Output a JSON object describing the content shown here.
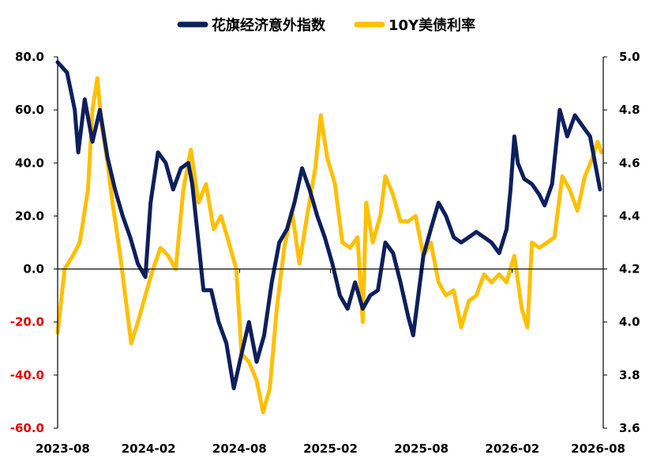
{
  "chart_data": {
    "type": "line",
    "title": "",
    "legend": {
      "position": "top-center"
    },
    "grid": false,
    "x_axis": {
      "ticks": [
        "2023-08",
        "2024-02",
        "2024-08",
        "2025-02",
        "2025-08",
        "2026-02",
        "2026-08"
      ],
      "range": [
        "2023-08",
        "2026-08"
      ]
    },
    "y_left": {
      "range": [
        -60,
        80
      ],
      "ticks": [
        {
          "value": 80,
          "label": "80.0"
        },
        {
          "value": 60,
          "label": "60.0"
        },
        {
          "value": 40,
          "label": "40.0"
        },
        {
          "value": 20,
          "label": "20.0"
        },
        {
          "value": 0,
          "label": "0.0"
        },
        {
          "value": -20,
          "label": "-20.0"
        },
        {
          "value": -40,
          "label": "-40.0"
        },
        {
          "value": -60,
          "label": "-60.0"
        }
      ],
      "negative_label_color": "#e60000"
    },
    "y_right": {
      "range": [
        3.6,
        5.0
      ],
      "ticks": [
        {
          "value": 5.0,
          "label": "5.0"
        },
        {
          "value": 4.8,
          "label": "4.8"
        },
        {
          "value": 4.6,
          "label": "4.6"
        },
        {
          "value": 4.4,
          "label": "4.4"
        },
        {
          "value": 4.2,
          "label": "4.2"
        },
        {
          "value": 4.0,
          "label": "4.0"
        },
        {
          "value": 3.8,
          "label": "3.8"
        },
        {
          "value": 3.6,
          "label": "3.6"
        }
      ]
    },
    "series": [
      {
        "name": "花旗经济意外指数",
        "axis": "left",
        "color": "#0d1f5c",
        "points": [
          [
            "2023-08-01",
            78
          ],
          [
            "2023-08-20",
            74
          ],
          [
            "2023-09-05",
            60
          ],
          [
            "2023-09-12",
            44
          ],
          [
            "2023-09-25",
            64
          ],
          [
            "2023-10-10",
            48
          ],
          [
            "2023-10-25",
            60
          ],
          [
            "2023-11-10",
            42
          ],
          [
            "2023-11-25",
            30
          ],
          [
            "2023-12-10",
            20
          ],
          [
            "2023-12-25",
            12
          ],
          [
            "2024-01-10",
            2
          ],
          [
            "2024-01-25",
            -3
          ],
          [
            "2024-02-05",
            25
          ],
          [
            "2024-02-20",
            44
          ],
          [
            "2024-03-05",
            40
          ],
          [
            "2024-03-20",
            30
          ],
          [
            "2024-04-05",
            38
          ],
          [
            "2024-04-20",
            40
          ],
          [
            "2024-04-28",
            32
          ],
          [
            "2024-05-10",
            10
          ],
          [
            "2024-05-20",
            -8
          ],
          [
            "2024-06-05",
            -8
          ],
          [
            "2024-06-20",
            -20
          ],
          [
            "2024-07-05",
            -28
          ],
          [
            "2024-07-20",
            -45
          ],
          [
            "2024-08-05",
            -32
          ],
          [
            "2024-08-20",
            -20
          ],
          [
            "2024-09-05",
            -35
          ],
          [
            "2024-09-20",
            -25
          ],
          [
            "2024-10-05",
            -5
          ],
          [
            "2024-10-20",
            10
          ],
          [
            "2024-11-05",
            15
          ],
          [
            "2024-11-20",
            25
          ],
          [
            "2024-12-05",
            38
          ],
          [
            "2024-12-20",
            30
          ],
          [
            "2025-01-05",
            20
          ],
          [
            "2025-01-20",
            12
          ],
          [
            "2025-02-05",
            2
          ],
          [
            "2025-02-20",
            -10
          ],
          [
            "2025-03-05",
            -15
          ],
          [
            "2025-03-20",
            -5
          ],
          [
            "2025-04-05",
            -15
          ],
          [
            "2025-04-20",
            -10
          ],
          [
            "2025-05-05",
            -8
          ],
          [
            "2025-05-20",
            10
          ],
          [
            "2025-06-05",
            6
          ],
          [
            "2025-06-20",
            -5
          ],
          [
            "2025-07-05",
            -18
          ],
          [
            "2025-07-15",
            -25
          ],
          [
            "2025-08-05",
            5
          ],
          [
            "2025-08-20",
            15
          ],
          [
            "2025-09-05",
            25
          ],
          [
            "2025-09-20",
            20
          ],
          [
            "2025-10-05",
            12
          ],
          [
            "2025-10-20",
            10
          ],
          [
            "2025-11-05",
            12
          ],
          [
            "2025-11-20",
            14
          ],
          [
            "2025-12-05",
            12
          ],
          [
            "2025-12-20",
            10
          ],
          [
            "2026-01-05",
            6
          ],
          [
            "2026-01-20",
            15
          ],
          [
            "2026-01-28",
            30
          ],
          [
            "2026-02-05",
            50
          ],
          [
            "2026-02-12",
            40
          ],
          [
            "2026-02-25",
            34
          ],
          [
            "2026-03-10",
            32
          ],
          [
            "2026-03-25",
            28
          ],
          [
            "2026-04-05",
            24
          ],
          [
            "2026-04-20",
            32
          ],
          [
            "2026-05-05",
            60
          ],
          [
            "2026-05-20",
            50
          ],
          [
            "2026-06-05",
            58
          ],
          [
            "2026-06-20",
            54
          ],
          [
            "2026-07-05",
            50
          ],
          [
            "2026-07-15",
            40
          ],
          [
            "2026-07-25",
            30
          ]
        ]
      },
      {
        "name": "10Y美债利率",
        "axis": "right",
        "color": "#ffc000",
        "points": [
          [
            "2023-08-01",
            3.96
          ],
          [
            "2023-08-15",
            4.2
          ],
          [
            "2023-09-01",
            4.25
          ],
          [
            "2023-09-15",
            4.3
          ],
          [
            "2023-10-01",
            4.5
          ],
          [
            "2023-10-10",
            4.8
          ],
          [
            "2023-10-20",
            4.92
          ],
          [
            "2023-10-28",
            4.75
          ],
          [
            "2023-11-10",
            4.6
          ],
          [
            "2023-11-20",
            4.45
          ],
          [
            "2023-12-05",
            4.25
          ],
          [
            "2023-12-15",
            4.1
          ],
          [
            "2023-12-27",
            3.92
          ],
          [
            "2024-01-10",
            4.0
          ],
          [
            "2024-01-25",
            4.1
          ],
          [
            "2024-02-10",
            4.2
          ],
          [
            "2024-02-25",
            4.28
          ],
          [
            "2024-03-10",
            4.25
          ],
          [
            "2024-03-25",
            4.2
          ],
          [
            "2024-04-10",
            4.5
          ],
          [
            "2024-04-25",
            4.65
          ],
          [
            "2024-05-10",
            4.45
          ],
          [
            "2024-05-25",
            4.52
          ],
          [
            "2024-06-10",
            4.35
          ],
          [
            "2024-06-25",
            4.4
          ],
          [
            "2024-07-10",
            4.3
          ],
          [
            "2024-07-25",
            4.2
          ],
          [
            "2024-08-05",
            3.88
          ],
          [
            "2024-08-20",
            3.85
          ],
          [
            "2024-09-05",
            3.78
          ],
          [
            "2024-09-18",
            3.66
          ],
          [
            "2024-10-01",
            3.75
          ],
          [
            "2024-10-15",
            4.05
          ],
          [
            "2024-10-30",
            4.28
          ],
          [
            "2024-11-15",
            4.42
          ],
          [
            "2024-11-30",
            4.22
          ],
          [
            "2024-12-15",
            4.4
          ],
          [
            "2025-01-01",
            4.58
          ],
          [
            "2025-01-12",
            4.78
          ],
          [
            "2025-01-25",
            4.62
          ],
          [
            "2025-02-10",
            4.52
          ],
          [
            "2025-02-25",
            4.3
          ],
          [
            "2025-03-10",
            4.28
          ],
          [
            "2025-03-25",
            4.32
          ],
          [
            "2025-04-05",
            4.0
          ],
          [
            "2025-04-12",
            4.45
          ],
          [
            "2025-04-25",
            4.3
          ],
          [
            "2025-05-10",
            4.4
          ],
          [
            "2025-05-20",
            4.55
          ],
          [
            "2025-06-05",
            4.48
          ],
          [
            "2025-06-20",
            4.38
          ],
          [
            "2025-07-05",
            4.38
          ],
          [
            "2025-07-20",
            4.4
          ],
          [
            "2025-08-05",
            4.25
          ],
          [
            "2025-08-20",
            4.3
          ],
          [
            "2025-09-05",
            4.15
          ],
          [
            "2025-09-20",
            4.1
          ],
          [
            "2025-10-05",
            4.12
          ],
          [
            "2025-10-20",
            3.98
          ],
          [
            "2025-11-05",
            4.08
          ],
          [
            "2025-11-20",
            4.1
          ],
          [
            "2025-12-05",
            4.18
          ],
          [
            "2025-12-20",
            4.15
          ],
          [
            "2026-01-05",
            4.18
          ],
          [
            "2026-01-20",
            4.15
          ],
          [
            "2026-02-05",
            4.25
          ],
          [
            "2026-02-20",
            4.05
          ],
          [
            "2026-03-01",
            3.98
          ],
          [
            "2026-03-10",
            4.3
          ],
          [
            "2026-03-25",
            4.28
          ],
          [
            "2026-04-10",
            4.3
          ],
          [
            "2026-04-25",
            4.32
          ],
          [
            "2026-05-10",
            4.55
          ],
          [
            "2026-05-25",
            4.5
          ],
          [
            "2026-06-10",
            4.42
          ],
          [
            "2026-06-25",
            4.55
          ],
          [
            "2026-07-10",
            4.62
          ],
          [
            "2026-07-20",
            4.68
          ],
          [
            "2026-07-28",
            4.64
          ]
        ]
      }
    ]
  }
}
